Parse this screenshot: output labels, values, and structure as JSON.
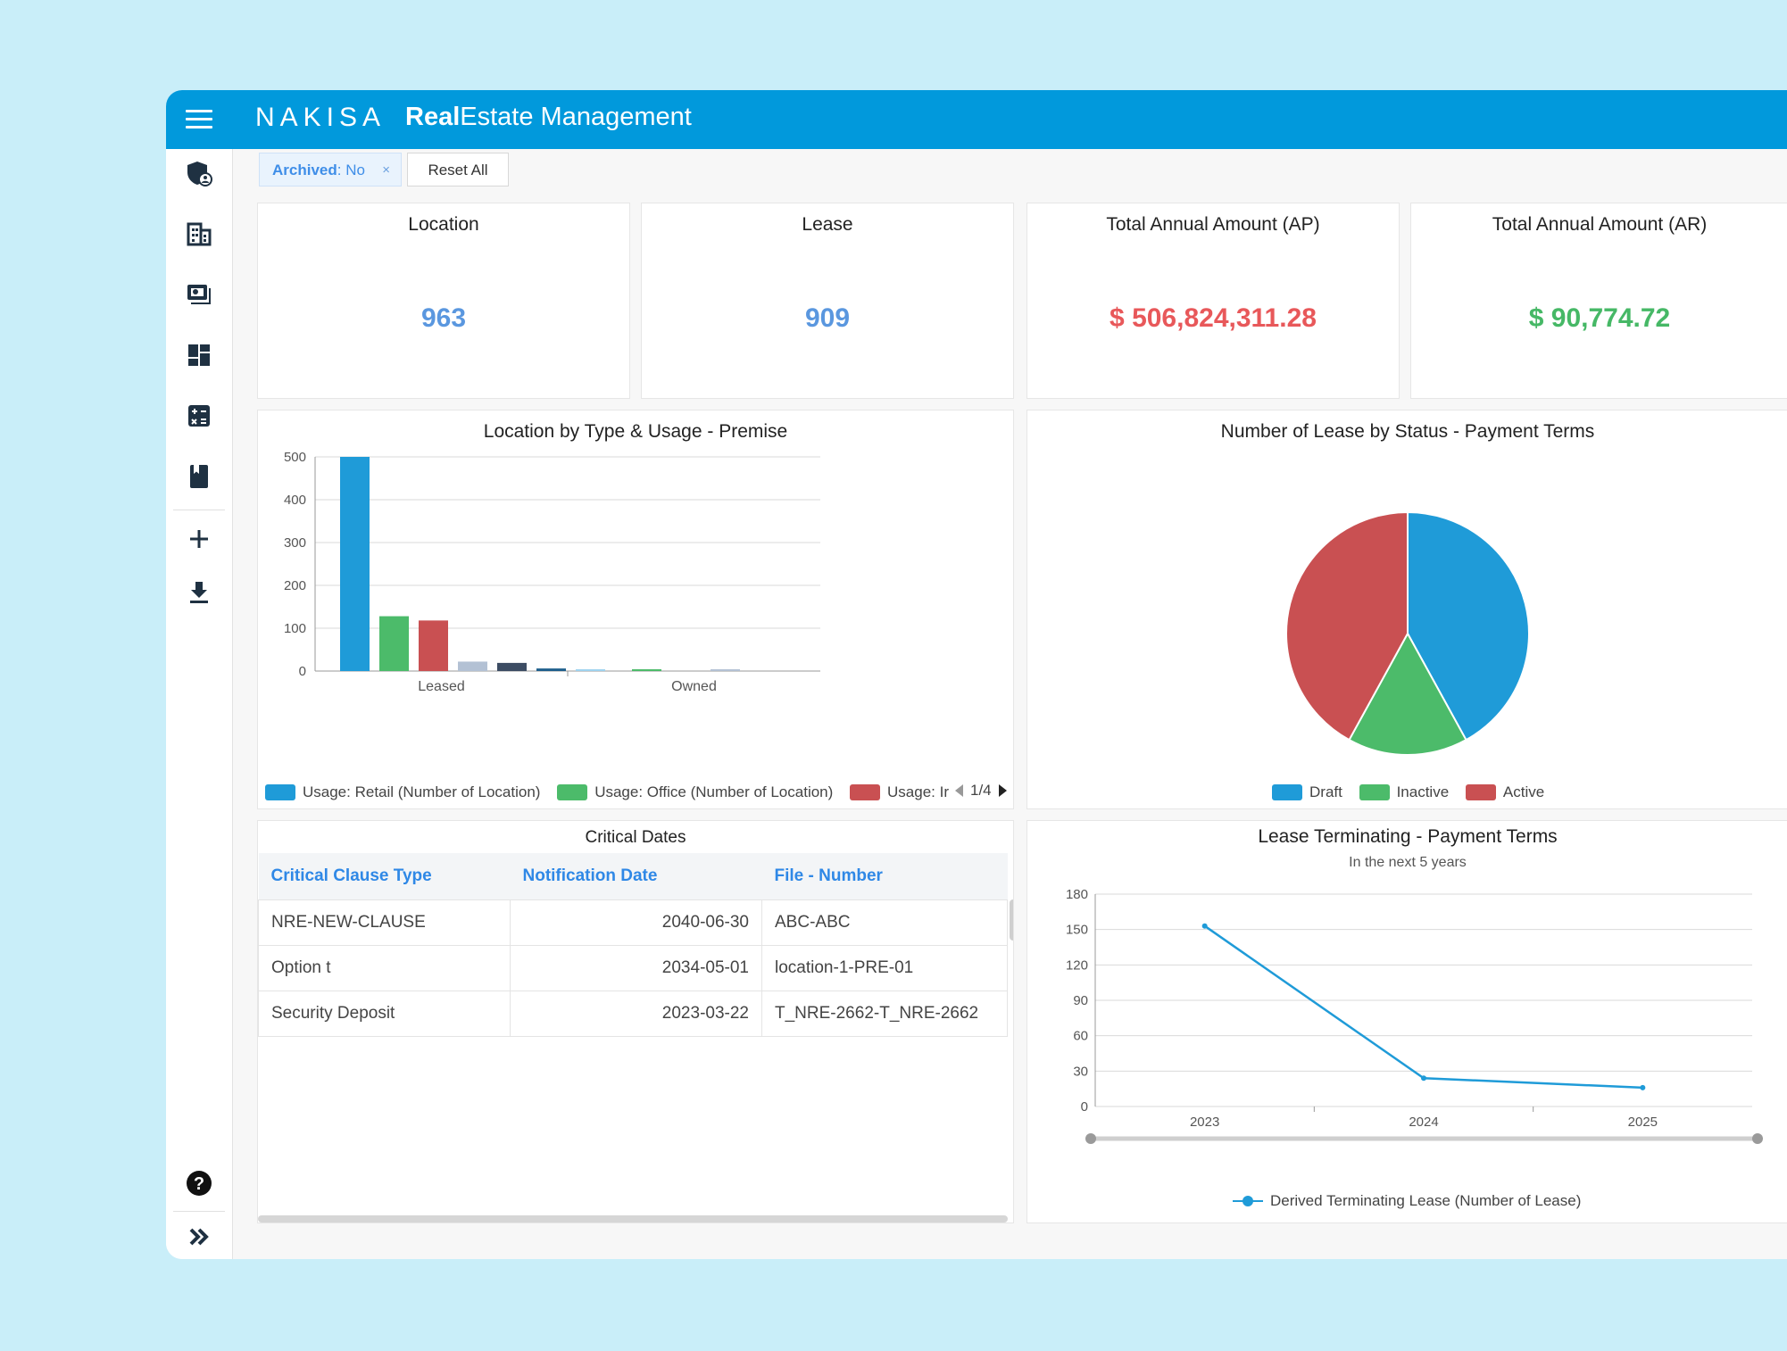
{
  "header": {
    "logo": "NAKISA",
    "title_bold": "Real",
    "title_rest": "Estate Management"
  },
  "sidebar": {
    "icons": [
      "shield-user-icon",
      "building-icon",
      "monitor-icon",
      "dashboard-icon",
      "calculator-icon",
      "book-icon",
      "plus-icon",
      "download-icon",
      "help-icon",
      "expand-icon"
    ]
  },
  "filters": {
    "archived_label": "Archived",
    "archived_value": ": No",
    "remove_symbol": "×",
    "reset_label": "Reset All"
  },
  "kpis": [
    {
      "title": "Location",
      "value": "963",
      "color": "#5a97df"
    },
    {
      "title": "Lease",
      "value": "909",
      "color": "#5a97df"
    },
    {
      "title": "Total Annual Amount (AP)",
      "value": "$ 506,824,311.28",
      "color": "#e8585a"
    },
    {
      "title": "Total Annual Amount (AR)",
      "value": "$ 90,774.72",
      "color": "#46b866"
    }
  ],
  "critical_dates": {
    "title": "Critical Dates",
    "columns": [
      "Critical Clause Type",
      "Notification Date",
      "File - Number"
    ],
    "rows": [
      [
        "NRE-NEW-CLAUSE",
        "2040-06-30",
        "ABC-ABC"
      ],
      [
        "Option t",
        "2034-05-01",
        "location-1-PRE-01"
      ],
      [
        "Security Deposit",
        "2023-03-22",
        "T_NRE-2662-T_NRE-2662"
      ]
    ]
  },
  "chart_data": [
    {
      "type": "bar",
      "title": "Location by Type & Usage - Premise",
      "categories": [
        "Leased",
        "Owned"
      ],
      "ylim": [
        0,
        500
      ],
      "yticks": [
        0,
        100,
        200,
        300,
        400,
        500
      ],
      "series": [
        {
          "name": "Usage: Retail (Number of Location)",
          "color": "#1f9bd8",
          "values": [
            500,
            0
          ]
        },
        {
          "name": "Usage: Office (Number of Location)",
          "color": "#4cbb6a",
          "values": [
            128,
            3
          ]
        },
        {
          "name": "Usage: Ir",
          "color": "#c95052",
          "values": [
            118,
            0
          ]
        },
        {
          "color": "#b3c1d4",
          "values": [
            22,
            4
          ]
        },
        {
          "color": "#3c4c63",
          "values": [
            19,
            0
          ]
        },
        {
          "color": "#1f5f8c",
          "values": [
            6,
            0
          ]
        },
        {
          "color": "#9fd3ef",
          "values": [
            2,
            0
          ]
        }
      ],
      "legend_page": "1/4",
      "grid": true
    },
    {
      "type": "pie",
      "title": "Number of Lease by Status - Payment Terms",
      "slices": [
        {
          "name": "Draft",
          "value": 42,
          "color": "#1f9bd8"
        },
        {
          "name": "Inactive",
          "value": 16,
          "color": "#4cbb6a"
        },
        {
          "name": "Active",
          "value": 42,
          "color": "#c95052"
        }
      ]
    },
    {
      "type": "line",
      "title": "Lease Terminating - Payment Terms",
      "subtitle": "In the next 5 years",
      "x": [
        "2023",
        "2024",
        "2025"
      ],
      "ylim": [
        0,
        180
      ],
      "yticks": [
        0,
        30,
        60,
        90,
        120,
        150,
        180
      ],
      "series": [
        {
          "name": "Derived Terminating Lease (Number of Lease)",
          "color": "#1f9bd8",
          "values": [
            153,
            24,
            16
          ]
        }
      ],
      "grid": true
    }
  ]
}
